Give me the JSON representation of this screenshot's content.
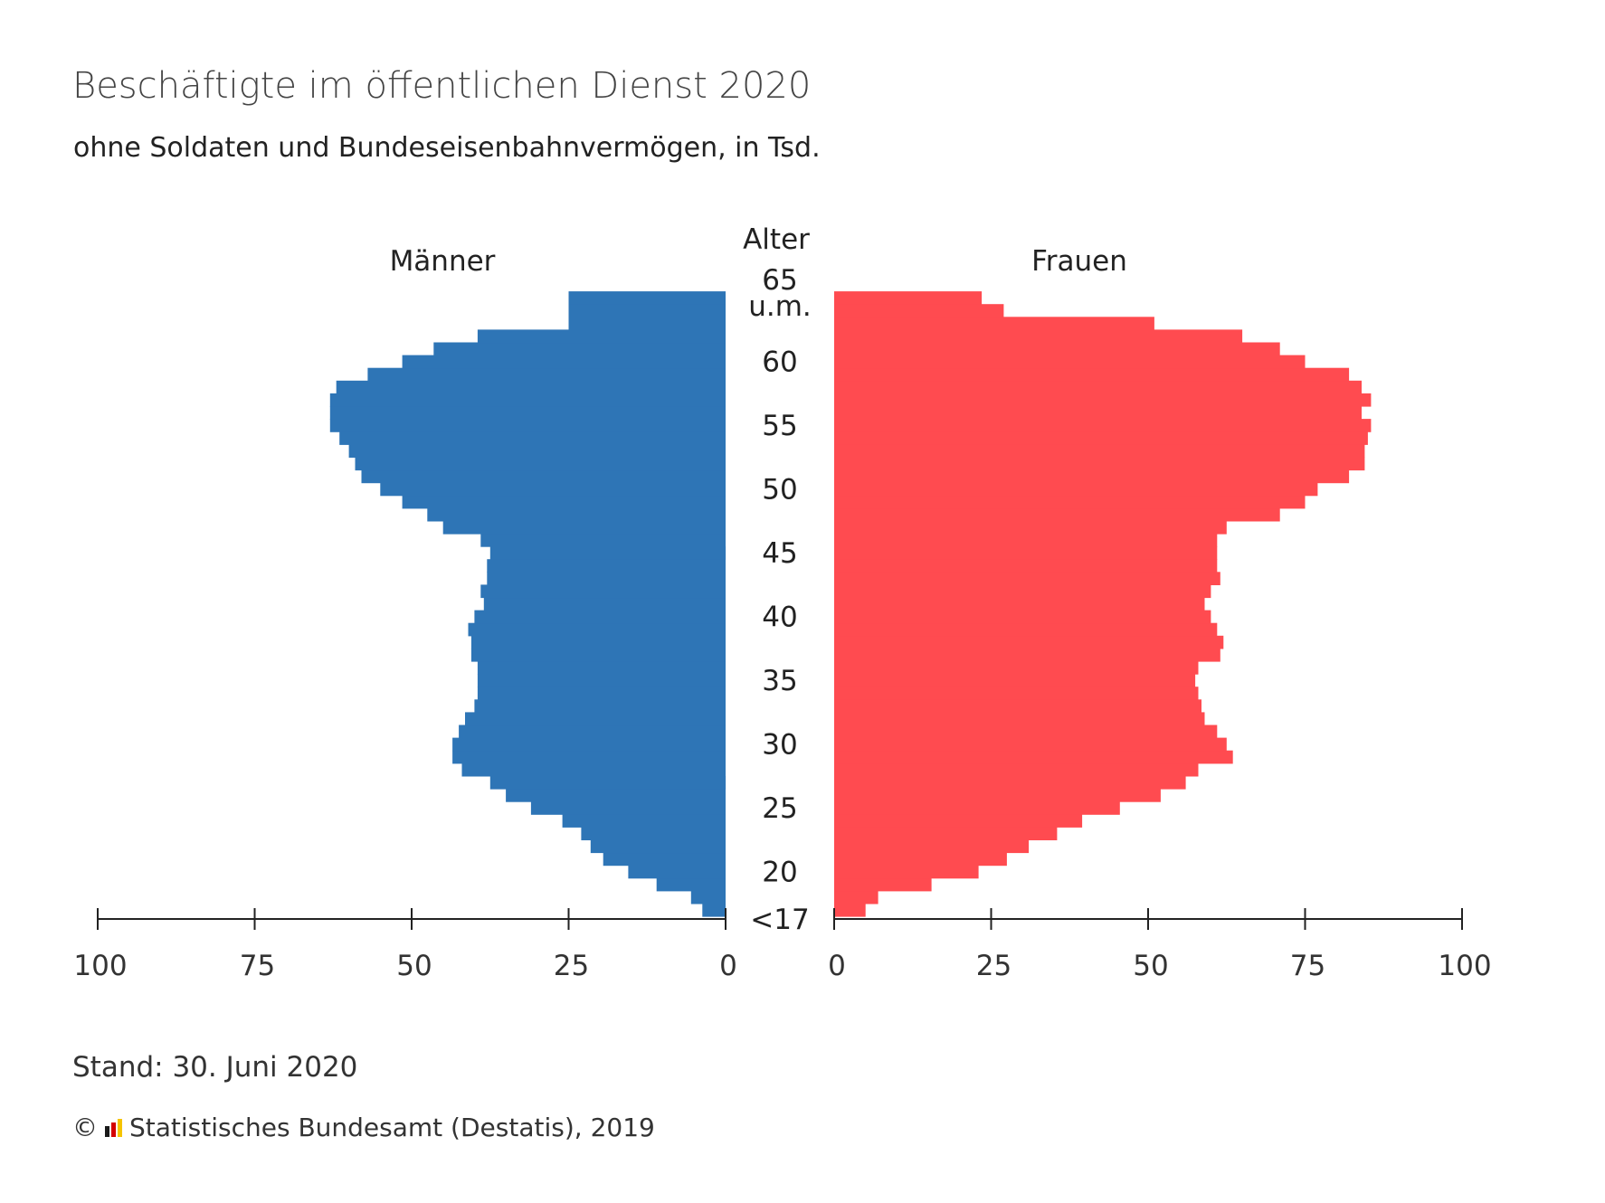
{
  "title": "Beschäftigte im öffentlichen Dienst 2020",
  "subtitle": "ohne Soldaten und Bundeseisenbahnvermögen, in Tsd.",
  "footer": {
    "stand": "Stand: 30. Juni 2020",
    "copyright_symbol": "©",
    "source": "Statistisches Bundesamt (Destatis), 2019"
  },
  "colors": {
    "maenner": "#2e75b6",
    "frauen": "#ff4b50",
    "axis": "#222222",
    "logo": [
      "#1a1a1a",
      "#d40000",
      "#f5c400"
    ]
  },
  "chart_data": {
    "type": "bar",
    "orientation": "population-pyramid",
    "ages": [
      "<17",
      "18",
      "19",
      "20",
      "21",
      "22",
      "23",
      "24",
      "25",
      "26",
      "27",
      "28",
      "29",
      "30",
      "31",
      "32",
      "33",
      "34",
      "35",
      "36",
      "37",
      "38",
      "39",
      "40",
      "41",
      "42",
      "43",
      "44",
      "45",
      "46",
      "47",
      "48",
      "49",
      "50",
      "51",
      "52",
      "53",
      "54",
      "55",
      "56",
      "57",
      "58",
      "59",
      "60",
      "61",
      "62",
      "63",
      "64",
      "65 u.m."
    ],
    "age_labels": [
      "<17",
      "20",
      "25",
      "30",
      "35",
      "40",
      "45",
      "50",
      "55",
      "60",
      "65"
    ],
    "top_age_label_extra": "u.m.",
    "center_axis_title": "Alter",
    "series": [
      {
        "name": "Männer",
        "side": "left",
        "values": [
          3.7,
          5.5,
          11,
          15.5,
          19.5,
          21.5,
          23,
          26,
          31,
          35,
          37.5,
          42,
          43.5,
          43.5,
          42.5,
          41.5,
          40,
          39.5,
          39.5,
          39.5,
          40.5,
          40.5,
          41,
          40,
          38.5,
          39,
          38,
          38,
          37.5,
          39,
          45,
          47.5,
          51.5,
          55,
          58,
          59,
          60,
          61.5,
          63,
          63,
          63,
          62,
          57,
          51.5,
          46.5,
          39.5,
          25,
          25,
          25
        ]
      },
      {
        "name": "Frauen",
        "side": "right",
        "values": [
          5,
          7,
          15.5,
          23,
          27.5,
          31,
          35.5,
          39.5,
          45.5,
          52,
          56,
          58,
          63.5,
          62.5,
          61,
          59,
          58.5,
          58,
          57.5,
          58,
          61.5,
          62,
          61,
          60,
          59,
          60,
          61.5,
          61,
          61,
          61,
          62.5,
          71,
          75,
          77,
          82,
          84.5,
          84.5,
          85,
          85.5,
          84,
          85.5,
          84,
          82,
          75,
          71,
          65,
          51,
          27,
          23.5
        ]
      }
    ],
    "x_ticks": [
      0,
      25,
      50,
      75,
      100
    ],
    "x_tick_labels_left": [
      "100",
      "75",
      "50",
      "25",
      "0"
    ],
    "x_tick_labels_right": [
      "0",
      "25",
      "50",
      "75",
      "100"
    ],
    "xlim": [
      0,
      100
    ],
    "unit": "Tsd."
  }
}
